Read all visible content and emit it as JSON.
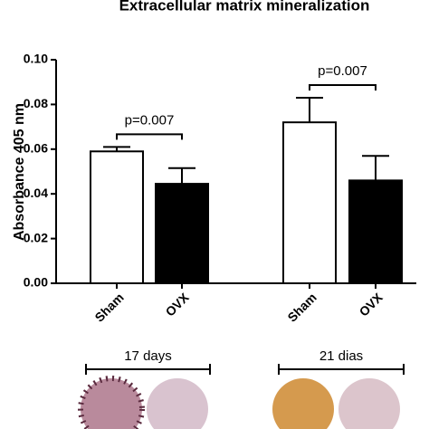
{
  "chart_data": {
    "type": "bar",
    "title": "Extracellular matrix mineralization",
    "y_label": "Absorbance 405 nm",
    "categories": [
      "Sham",
      "OVX",
      "Sham",
      "OVX"
    ],
    "values": [
      0.059,
      0.0445,
      0.072,
      0.046
    ],
    "errors": [
      0.002,
      0.007,
      0.011,
      0.011
    ],
    "colors": [
      "#ffffff",
      "#000000",
      "#ffffff",
      "#000000"
    ],
    "ylim": [
      0,
      0.1
    ],
    "yticks": [
      {
        "value": 0,
        "label": "0.00"
      },
      {
        "value": 0.02,
        "label": "0.02"
      },
      {
        "value": 0.04,
        "label": "0.04"
      },
      {
        "value": 0.06,
        "label": "0.06"
      },
      {
        "value": 0.08,
        "label": "0.08"
      },
      {
        "value": 0.1,
        "label": "0.10"
      }
    ],
    "annotations": [
      "p=0.007",
      "p=0.007"
    ],
    "groups": [
      "17 days",
      "21 dias"
    ]
  }
}
